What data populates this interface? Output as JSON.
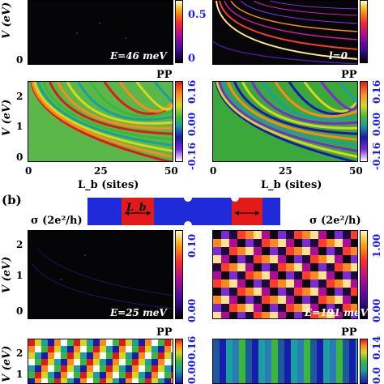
{
  "panel_label_b": "(b)",
  "pp_label": "PP",
  "sigma_label": "σ (2e²/h)",
  "y_axis_label": "V (eV)",
  "x_axis_label": "L_b (sites)",
  "lb_label": "L_b",
  "x_ticks": [
    "0",
    "25",
    "50"
  ],
  "y_ticks_upper": [
    "2",
    "1",
    "0"
  ],
  "y_ticks_lower": [
    "2",
    "1"
  ],
  "a_top_left": {
    "annotation": "E=46 meV",
    "cbar_ticks": [
      "0.5",
      "0"
    ]
  },
  "a_top_right": {
    "annotation": "l=0"
  },
  "a_bottom_left": {
    "cbar_ticks": [
      "0.16",
      "0.00",
      "-0.16"
    ]
  },
  "a_bottom_right": {
    "cbar_ticks": [
      "0.16",
      "0.00",
      "-0.16"
    ]
  },
  "b_top_left": {
    "annotation": "E=25 meV",
    "cbar_ticks": [
      "0.10",
      "0.00"
    ]
  },
  "b_top_right": {
    "annotation": "E=191 meV",
    "cbar_ticks": [
      "1.00",
      "0.00"
    ]
  },
  "b_bottom_left": {
    "cbar_ticks": [
      "0.16",
      "0.00"
    ]
  },
  "b_bottom_right": {
    "cbar_ticks": [
      "0.14",
      "0.0"
    ]
  },
  "colors": {
    "accent_blue": "#1a1aff",
    "device_blue": "#1f2bd8",
    "device_red": "#e21a1a"
  }
}
